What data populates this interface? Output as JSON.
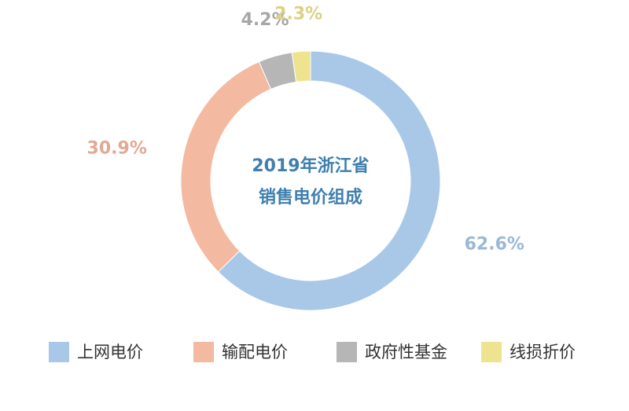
{
  "chart_data": {
    "type": "donut",
    "title": [
      "2019年浙江省",
      "销售电价组成"
    ],
    "categories": [
      "上网电价",
      "输配电价",
      "政府性基金",
      "线损折价"
    ],
    "values": [
      62.6,
      30.9,
      4.2,
      2.3
    ],
    "value_labels": [
      "62.6%",
      "30.9%",
      "4.2%",
      "2.3%"
    ],
    "colors": [
      "#a9c8e8",
      "#f3b9a1",
      "#b6b6b6",
      "#eee38e"
    ],
    "legend": "bottom"
  }
}
